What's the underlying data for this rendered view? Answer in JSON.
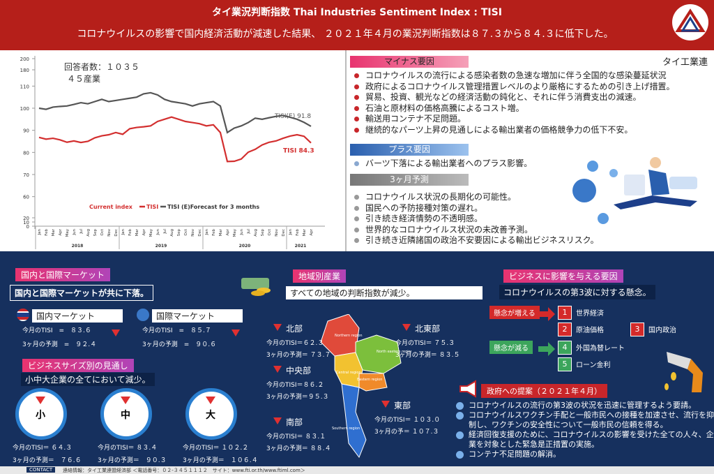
{
  "header": {
    "title": "タイ業況判断指数 Thai Industries Sentiment Index : TISI",
    "subtitle": "コロナウイルスの影響で国内経済活動が減速した結果、 ２０２１年４月の業況判断指数は８７.３から８４.３に低下した。",
    "org": "タイ工業連"
  },
  "respondents": [
    "回答者数：１０３５",
    "４５産業"
  ],
  "chart_data": {
    "type": "line",
    "categories": [
      "Jan",
      "Feb",
      "Mar",
      "Apr",
      "May",
      "Jun",
      "Jul",
      "Aug",
      "Sep",
      "Oct",
      "Nov",
      "Dec",
      "Jan",
      "Feb",
      "Mar",
      "Apr",
      "May",
      "Jun",
      "Jul",
      "Aug",
      "Sep",
      "Oct",
      "Nov",
      "Dec",
      "Jan",
      "Feb",
      "Mar",
      "Apr",
      "May",
      "Jun",
      "Jul",
      "Aug",
      "Sep",
      "Oct",
      "Nov",
      "Dec",
      "Jan",
      "Feb",
      "Mar",
      "Apr"
    ],
    "years": [
      "2018",
      "2019",
      "2020",
      "2021"
    ],
    "legend_title": "Current index",
    "series": [
      {
        "name": "TISI",
        "color": "#d32f2f",
        "values": [
          86.8,
          86.0,
          86.4,
          85.7,
          84.6,
          85.2,
          84.5,
          85.0,
          86.6,
          87.5,
          88.0,
          89.0,
          88.2,
          90.7,
          91.3,
          91.6,
          92.0,
          94.0,
          95.0,
          96.0,
          95.0,
          94.0,
          93.5,
          93.0,
          92.0,
          92.5,
          89.0,
          75.9,
          76.0,
          77.0,
          80.1,
          81.4,
          83.4,
          84.6,
          85.2,
          86.4,
          87.4,
          88.0,
          87.3,
          84.3
        ]
      },
      {
        "name": "TISI (E)Forecast for 3 months",
        "color": "#555555",
        "values": [
          100.0,
          99.5,
          100.5,
          100.8,
          101.0,
          101.7,
          102.5,
          102.0,
          103.0,
          104.0,
          103.0,
          103.5,
          104.0,
          104.5,
          105.0,
          106.5,
          107.0,
          106.0,
          104.0,
          103.0,
          102.5,
          102.0,
          101.0,
          102.0,
          102.5,
          103.0,
          101.0,
          89.0,
          91.0,
          92.0,
          93.5,
          95.5,
          95.0,
          95.7,
          96.3,
          96.7,
          95.9,
          95.0,
          93.6,
          91.8
        ]
      }
    ],
    "annotations": [
      "TISI(E) 91.8",
      "TISI 84.3"
    ],
    "ylim": [
      58,
      112
    ],
    "yticks": [
      60,
      70,
      80,
      90,
      100,
      110
    ],
    "ytop_ticks": [
      180,
      200
    ],
    "ybottom_ticks": [
      0,
      10,
      20
    ]
  },
  "minus": {
    "heading": "マイナス要因",
    "items": [
      "コロナウイルスの流行による感染者数の急速な増加に伴う全国的な感染蔓延状況",
      "政府によるコロナウイルス管理措置レベルのより厳格にするための引き上げ措置。",
      "貿易、投資、観光などの経済活動の鈍化と、それに伴う消費支出の減速。",
      "石油と原材料の価格高騰によるコスト増。",
      "輸送用コンテナ不足問題。",
      "継続的なパーツ上昇の見通しによる輸出業者の価格競争力の低下不安。"
    ]
  },
  "plus": {
    "heading": "プラス要因",
    "items": [
      "バーツ下落による輸出業者へのプラス影響。"
    ]
  },
  "forecast": {
    "heading": "3ヶ月予測",
    "items": [
      "コロナウイルス状況の長期化の可能性。",
      "国民への予防接種対策の遅れ。",
      "引き続き経済情勢の不透明感。",
      "世界的なコロナウイルス状況の未改善予測。",
      "引き続き近隣諸国の政治不安要因による輸出ビジネスリスク。"
    ]
  },
  "market": {
    "heading": "国内と国際マーケット",
    "summary": "国内と国際マーケットが共に下落。",
    "cards": [
      {
        "title": "国内マーケット",
        "rows": [
          "今月のTISI　=　８３.６",
          "3ヶ月の予測　=　９２.４"
        ]
      },
      {
        "title": "国際マーケット",
        "rows": [
          "今月のTISI　=　８５.７",
          "3ヶ月の予測　=　９０.６"
        ]
      }
    ]
  },
  "size": {
    "heading": "ビジネスサイズ別の見通し",
    "summary": "小中大企業の全てにおいて減少。",
    "items": [
      {
        "label": "小",
        "rows": [
          "今月のTISI＝ ６４.３",
          "3ヶ月の予測＝　７６.６"
        ]
      },
      {
        "label": "中",
        "rows": [
          "今月のTISI＝ ８３.４",
          "3ヶ月の予測＝　９０.３"
        ]
      },
      {
        "label": "大",
        "rows": [
          "今月のTISI＝ １０２.２",
          "3ヶ月の予測＝　１０６.４"
        ]
      }
    ]
  },
  "region": {
    "heading": "地域別産業",
    "summary": "すべての地域の判断指数が減少。",
    "items": [
      {
        "name": "北部",
        "rows": [
          "今月のTISI＝６２.３",
          "3ヶ月の予測＝ ７３.７"
        ]
      },
      {
        "name": "北東部",
        "rows": [
          "今月のTISI＝ ７５.３",
          "3ヶ月の予測＝ ８３.５"
        ]
      },
      {
        "name": "中央部",
        "rows": [
          "今月のTISI＝８６.２",
          "3ヶ月の予測＝９５.３"
        ]
      },
      {
        "name": "東部",
        "rows": [
          "今月のTISI＝ １０３.０",
          "3ヶ月の予＝ １０７.３"
        ]
      },
      {
        "name": "南部",
        "rows": [
          "今月のTISI＝ ８３.１",
          "3ヶ月の予測＝ ８８.４"
        ]
      }
    ],
    "map_labels": [
      "Northern region",
      "North eastern region",
      "Central region",
      "Eastern region",
      "Southern region"
    ]
  },
  "factors": {
    "heading": "ビジネスに影響を与える要因",
    "summary": "コロナウイルスの第3波に対する懸念。",
    "increase": "懸念が増える",
    "decrease": "懸念が減る",
    "items": [
      {
        "no": "1",
        "label": "世界経済"
      },
      {
        "no": "2",
        "label": "原油価格"
      },
      {
        "no": "3",
        "label": "国内政治"
      },
      {
        "no": "4",
        "label": "外国為替レート"
      },
      {
        "no": "5",
        "label": "ローン金利"
      }
    ]
  },
  "government": {
    "heading": "政府への提案（２０２１年４月）",
    "items": [
      "コロナウイルスの流行の第3波の状況を迅速に管理するよう要請。",
      "コロナウイルスワクチン手配と一般市民への接種を加速させ、流行を抑制し、ワクチンの安全性について一般市民の信頼を得る。",
      "経済回復支援のために、コロナウイルスの影響を受けた全ての人々、企業を対象とした緊急是正措置の実施。",
      "コンテナ不足問題の解消。"
    ]
  },
  "footer": {
    "label": "CONTACT",
    "text": "連絡情報：タイ工業連盟経済部 ＜電話番号：０２-３４５１１１２　サイト：www.fti.or.th/www.ftiml.com＞"
  }
}
